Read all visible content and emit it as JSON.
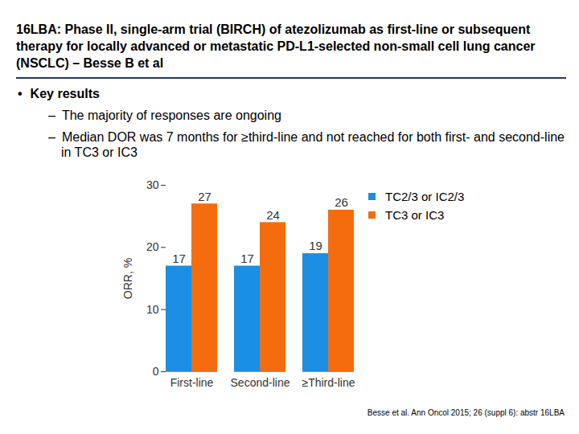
{
  "slide": {
    "title": "16LBA: Phase II, single-arm trial (BIRCH) of atezolizumab as first-line or subsequent therapy for locally advanced or metastatic PD-L1-selected non-small cell lung cancer (NSCLC) – Besse B et al",
    "heading": "Key results",
    "bullets": [
      "The majority of responses are ongoing",
      "Median DOR was 7 months for ≥third-line and not reached for both first- and second-line in TC3 or IC3"
    ],
    "citation": "Besse et al. Ann Oncol 2015; 26 (suppl 6): abstr 16LBA"
  },
  "chart_data": {
    "type": "bar",
    "categories": [
      "First-line",
      "Second-line",
      "≥Third-line"
    ],
    "series": [
      {
        "name": "TC2/3 or IC2/3",
        "color": "#1a8fe3",
        "values": [
          17,
          17,
          19
        ]
      },
      {
        "name": "TC3 or IC3",
        "color": "#f56c0f",
        "values": [
          27,
          24,
          26
        ]
      }
    ],
    "y_label": "ORR, %",
    "ylim": [
      0,
      30
    ],
    "yticks": [
      0,
      10,
      20,
      30
    ],
    "grid": false,
    "legend": "right",
    "data_labels": true
  }
}
